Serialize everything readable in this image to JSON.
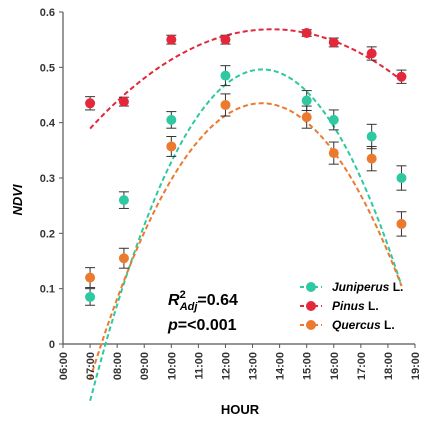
{
  "chart_data": {
    "type": "scatter",
    "xlabel": "HOUR",
    "ylabel": "NDVI",
    "x_ticks": [
      "06:00",
      "07:00",
      "08:00",
      "09:00",
      "10:00",
      "11:00",
      "12:00",
      "13:00",
      "14:00",
      "15:00",
      "16:00",
      "17:00",
      "18:00",
      "19:00"
    ],
    "y_ticks": [
      "0",
      "0.1",
      "0.2",
      "0.3",
      "0.4",
      "0.5",
      "0.6"
    ],
    "xlim_hours": [
      6,
      19
    ],
    "ylim": [
      0,
      0.6
    ],
    "grid": false,
    "legend_position": "bottom-right",
    "annotation": {
      "r2_symbol": "R",
      "r2_sup": "2",
      "r2_sub": "Adj",
      "r2_value": "=0.64",
      "p_symbol": "p",
      "p_value": "=<0.001"
    },
    "series": [
      {
        "name": "Juniperus",
        "name_suffix": " L.",
        "color": "#2ec9a0",
        "x_hours": [
          7.0,
          8.25,
          10.0,
          12.0,
          15.0,
          16.0,
          17.4,
          18.5
        ],
        "y": [
          0.085,
          0.26,
          0.405,
          0.485,
          0.44,
          0.405,
          0.375,
          0.3
        ],
        "err": [
          0.015,
          0.015,
          0.015,
          0.018,
          0.018,
          0.018,
          0.022,
          0.022
        ],
        "fit": [
          -0.0148,
          0.3955,
          -2.146
        ]
      },
      {
        "name": "Pinus",
        "name_suffix": " L.",
        "color": "#e3283b",
        "x_hours": [
          7.0,
          8.25,
          10.0,
          12.0,
          15.0,
          16.0,
          17.4,
          18.5
        ],
        "y": [
          0.435,
          0.438,
          0.55,
          0.55,
          0.562,
          0.545,
          0.525,
          0.483
        ],
        "err": [
          0.012,
          0.008,
          0.008,
          0.008,
          0.006,
          0.008,
          0.012,
          0.012
        ],
        "fit": [
          -0.004,
          0.1096,
          -0.182
        ]
      },
      {
        "name": "Quercus",
        "name_suffix": " L.",
        "color": "#ec7a2e",
        "x_hours": [
          7.0,
          8.25,
          10.0,
          12.0,
          15.0,
          16.0,
          17.4,
          18.5
        ],
        "y": [
          0.12,
          0.155,
          0.357,
          0.432,
          0.41,
          0.345,
          0.335,
          0.217
        ],
        "err": [
          0.018,
          0.018,
          0.018,
          0.02,
          0.02,
          0.02,
          0.022,
          0.022
        ],
        "fit": [
          -0.0124,
          0.3308,
          -1.771
        ]
      }
    ]
  }
}
